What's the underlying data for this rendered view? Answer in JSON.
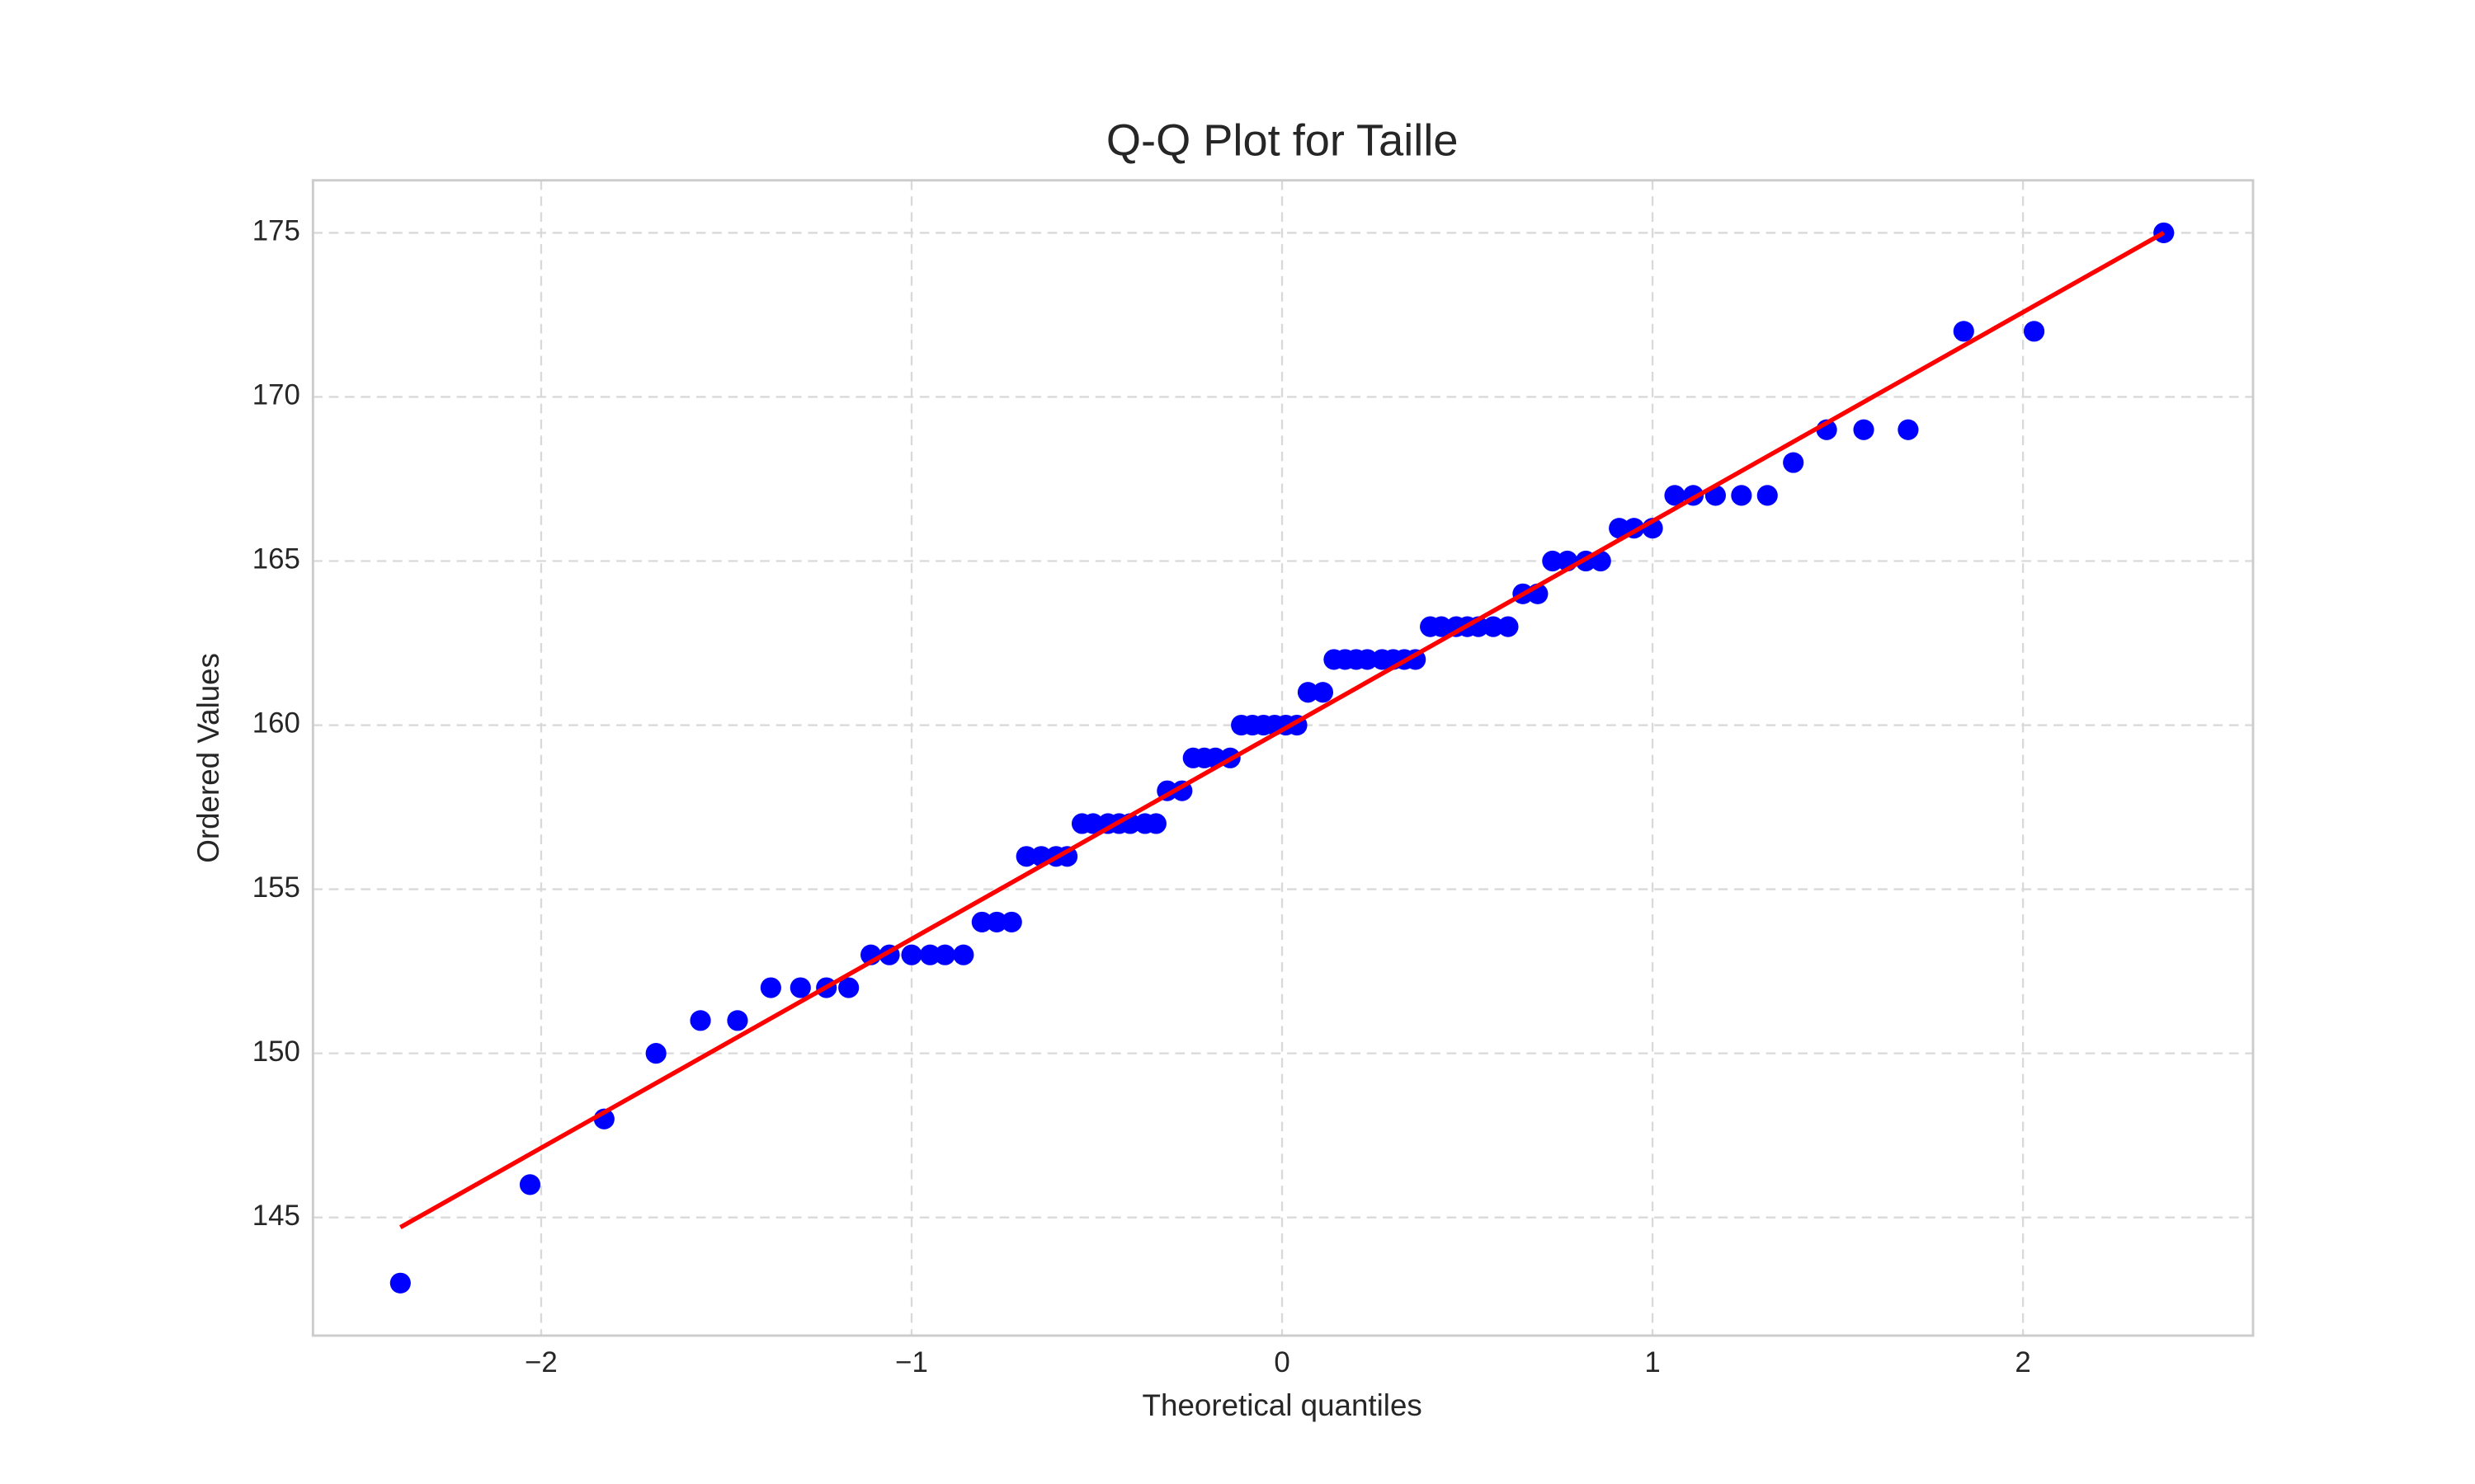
{
  "chart_data": {
    "type": "scatter",
    "title": "Q-Q Plot for Taille",
    "x_label": "Theoretical quantiles",
    "y_label": "Ordered Values",
    "x": [
      -2.38,
      -2.03,
      -1.83,
      -1.69,
      -1.57,
      -1.47,
      -1.38,
      -1.3,
      -1.23,
      -1.17,
      -1.11,
      -1.06,
      -1.0,
      -0.95,
      -0.91,
      -0.86,
      -0.81,
      -0.77,
      -0.73,
      -0.69,
      -0.65,
      -0.61,
      -0.58,
      -0.54,
      -0.51,
      -0.47,
      -0.44,
      -0.41,
      -0.37,
      -0.34,
      -0.31,
      -0.27,
      -0.24,
      -0.21,
      -0.18,
      -0.14,
      -0.11,
      -0.08,
      -0.05,
      -0.02,
      0.01,
      0.04,
      0.07,
      0.11,
      0.14,
      0.17,
      0.2,
      0.23,
      0.27,
      0.3,
      0.33,
      0.36,
      0.4,
      0.43,
      0.47,
      0.5,
      0.53,
      0.57,
      0.61,
      0.65,
      0.69,
      0.73,
      0.77,
      0.82,
      0.86,
      0.91,
      0.95,
      1.0,
      1.06,
      1.11,
      1.17,
      1.24,
      1.31,
      1.38,
      1.47,
      1.57,
      1.69,
      1.84,
      2.03,
      2.38
    ],
    "values": [
      143,
      146,
      148,
      150,
      151,
      151,
      152,
      152,
      152,
      152,
      153,
      153,
      153,
      153,
      153,
      153,
      154,
      154,
      154,
      156,
      156,
      156,
      156,
      157,
      157,
      157,
      157,
      157,
      157,
      157,
      158,
      158,
      159,
      159,
      159,
      159,
      160,
      160,
      160,
      160,
      160,
      160,
      161,
      161,
      162,
      162,
      162,
      162,
      162,
      162,
      162,
      162,
      163,
      163,
      163,
      163,
      163,
      163,
      163,
      164,
      164,
      165,
      165,
      165,
      165,
      166,
      166,
      166,
      167,
      167,
      167,
      167,
      167,
      168,
      169,
      169,
      169,
      172,
      172,
      175
    ],
    "color": "#0000ff",
    "fit_line": {
      "x": [
        -2.38,
        2.38
      ],
      "values": [
        144.7,
        175.0
      ],
      "color": "#ff0000"
    },
    "xlim": [
      -2.616,
      2.621
    ],
    "ylim": [
      141.4,
      176.6
    ],
    "xticks": [
      {
        "value": -2,
        "label": "−2"
      },
      {
        "value": -1,
        "label": "−1"
      },
      0,
      1,
      2
    ],
    "yticks": [
      145,
      150,
      155,
      160,
      165,
      170,
      175
    ],
    "grid": true
  }
}
